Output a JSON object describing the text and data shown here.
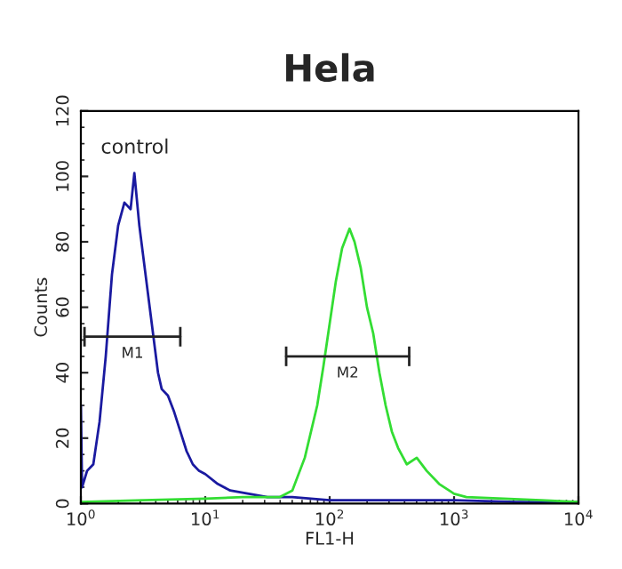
{
  "chart_data": {
    "type": "line",
    "title": "Hela",
    "xlabel": "FL1-H",
    "ylabel": "Counts",
    "log": "x",
    "xlim": [
      1,
      10000
    ],
    "ylim": [
      0,
      120
    ],
    "xticks": [
      {
        "value": 1,
        "label": "10$^{0}$"
      },
      {
        "value": 10,
        "label": "10$^{1}$"
      },
      {
        "value": 100,
        "label": "10$^{2}$"
      },
      {
        "value": 1000,
        "label": "10$^{3}$"
      },
      {
        "value": 10000,
        "label": "10$^{4}$"
      }
    ],
    "yticks": [
      0,
      20,
      40,
      60,
      80,
      100,
      120
    ],
    "grid": false,
    "legend": false,
    "marker": "none",
    "line_style": "solid",
    "annotations": [
      "control"
    ],
    "series": [
      {
        "color": "#1a1aa0",
        "x": [
          1.0,
          1.023,
          1.122,
          1.259,
          1.413,
          1.585,
          1.778,
          1.995,
          2.239,
          2.512,
          2.692,
          2.951,
          3.311,
          3.715,
          4.169,
          4.467,
          5.012,
          5.623,
          6.31,
          7.079,
          7.943,
          8.913,
          10,
          12.59,
          15.85,
          22.39,
          31.62,
          50.12,
          100,
          316.2,
          1000,
          3162,
          10000
        ],
        "values": [
          30,
          5,
          10,
          12,
          25,
          45,
          70,
          85,
          92,
          90,
          101,
          85,
          70,
          55,
          40,
          35,
          33,
          28,
          22,
          16,
          12,
          10,
          9,
          6,
          4,
          3,
          2,
          2,
          1,
          1,
          1,
          0.5,
          0.5
        ]
      },
      {
        "color": "#33dd33",
        "x": [
          1,
          3.162,
          10,
          19.95,
          39.81,
          50.12,
          63.1,
          79.43,
          89.13,
          100,
          112.2,
          125.9,
          144.5,
          158.5,
          177.8,
          199.5,
          223.9,
          251.2,
          281.8,
          316.2,
          354.8,
          416.9,
          501.2,
          602.6,
          758.6,
          1000,
          1259,
          2512,
          5012,
          10000
        ],
        "values": [
          0.5,
          1,
          1.5,
          2,
          2,
          4,
          14,
          30,
          42,
          55,
          68,
          78,
          84,
          80,
          72,
          60,
          52,
          40,
          30,
          22,
          17,
          12,
          14,
          10,
          6,
          3,
          2,
          1.5,
          1,
          0.5
        ]
      },
      {
        "name": "M1",
        "color": "#222222",
        "x": [
          1.07,
          6.3
        ],
        "values": [
          51,
          51
        ],
        "errors": [
          3,
          3
        ]
      },
      {
        "name": "M2",
        "color": "#222222",
        "x": [
          44.7,
          436
        ],
        "values": [
          45,
          45
        ],
        "errors": [
          3,
          3
        ]
      }
    ]
  }
}
